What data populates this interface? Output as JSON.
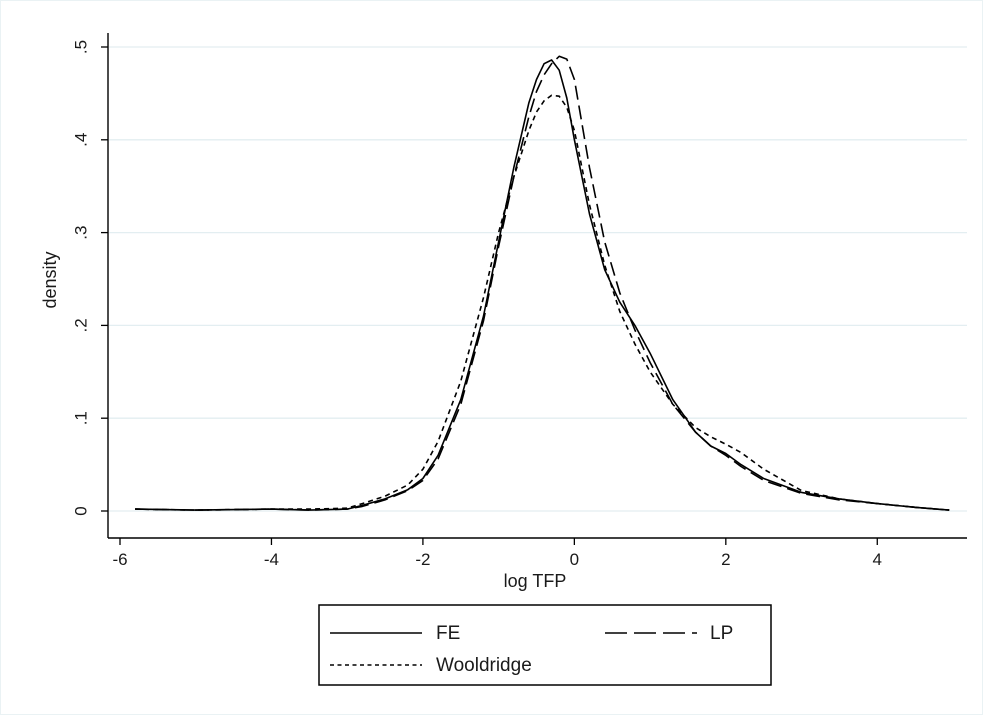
{
  "colors": {
    "background": "#ffffff",
    "plot_background": "#ffffff",
    "grid": "#e3eef1",
    "axis": "#000000",
    "series": "#000000",
    "frame": "#eaf2f4"
  },
  "chart_data": {
    "type": "line",
    "title": "",
    "xlabel": "log TFP",
    "ylabel": "density",
    "xlim": [
      -6.0,
      5.0
    ],
    "ylim": [
      -0.01,
      0.52
    ],
    "xticks": [
      -6,
      -4,
      -2,
      0,
      2,
      4
    ],
    "xtick_labels": [
      "-6",
      "-4",
      "-2",
      "0",
      "2",
      "4"
    ],
    "yticks": [
      0,
      0.1,
      0.2,
      0.3,
      0.4,
      0.5
    ],
    "ytick_labels": [
      "0",
      ".1",
      ".2",
      ".3",
      ".4",
      ".5"
    ],
    "grid": "horizontal",
    "legend_position": "bottom",
    "series": [
      {
        "name": "FE",
        "style": "solid",
        "x": [
          -5.8,
          -5.0,
          -4.0,
          -3.5,
          -3.0,
          -2.8,
          -2.5,
          -2.2,
          -2.0,
          -1.8,
          -1.5,
          -1.2,
          -1.0,
          -0.8,
          -0.6,
          -0.5,
          -0.4,
          -0.3,
          -0.2,
          -0.1,
          0.0,
          0.2,
          0.4,
          0.6,
          0.8,
          1.0,
          1.3,
          1.6,
          1.8,
          2.0,
          2.2,
          2.5,
          3.0,
          3.5,
          4.0,
          4.5,
          4.95
        ],
        "y": [
          0.002,
          0.001,
          0.002,
          0.001,
          0.002,
          0.006,
          0.013,
          0.023,
          0.035,
          0.06,
          0.12,
          0.21,
          0.29,
          0.37,
          0.44,
          0.465,
          0.482,
          0.486,
          0.475,
          0.445,
          0.4,
          0.32,
          0.26,
          0.225,
          0.2,
          0.17,
          0.12,
          0.085,
          0.07,
          0.062,
          0.05,
          0.035,
          0.02,
          0.013,
          0.008,
          0.004,
          0.001
        ]
      },
      {
        "name": "LP",
        "style": "dashed",
        "x": [
          -5.8,
          -5.0,
          -4.0,
          -3.5,
          -3.0,
          -2.8,
          -2.5,
          -2.2,
          -2.0,
          -1.8,
          -1.5,
          -1.2,
          -1.0,
          -0.8,
          -0.6,
          -0.5,
          -0.4,
          -0.3,
          -0.2,
          -0.1,
          0.0,
          0.2,
          0.4,
          0.6,
          0.8,
          1.0,
          1.3,
          1.6,
          1.8,
          2.0,
          2.2,
          2.5,
          3.0,
          3.5,
          4.0,
          4.5,
          4.95
        ],
        "y": [
          0.002,
          0.001,
          0.002,
          0.001,
          0.002,
          0.005,
          0.012,
          0.022,
          0.033,
          0.056,
          0.115,
          0.205,
          0.285,
          0.36,
          0.425,
          0.452,
          0.47,
          0.482,
          0.49,
          0.487,
          0.465,
          0.37,
          0.29,
          0.235,
          0.195,
          0.16,
          0.115,
          0.085,
          0.07,
          0.06,
          0.048,
          0.033,
          0.019,
          0.012,
          0.008,
          0.004,
          0.001
        ]
      },
      {
        "name": "Wooldridge",
        "style": "dotted",
        "x": [
          -5.8,
          -5.0,
          -4.0,
          -3.5,
          -3.0,
          -2.8,
          -2.5,
          -2.2,
          -2.0,
          -1.8,
          -1.5,
          -1.2,
          -1.0,
          -0.8,
          -0.6,
          -0.5,
          -0.4,
          -0.3,
          -0.2,
          -0.1,
          0.0,
          0.2,
          0.4,
          0.6,
          0.8,
          1.0,
          1.3,
          1.6,
          1.8,
          2.0,
          2.2,
          2.5,
          3.0,
          3.5,
          4.0,
          4.5,
          4.95
        ],
        "y": [
          0.002,
          0.001,
          0.002,
          0.002,
          0.003,
          0.008,
          0.016,
          0.028,
          0.045,
          0.075,
          0.14,
          0.23,
          0.3,
          0.36,
          0.41,
          0.43,
          0.442,
          0.448,
          0.447,
          0.435,
          0.41,
          0.33,
          0.265,
          0.215,
          0.18,
          0.15,
          0.115,
          0.09,
          0.08,
          0.072,
          0.063,
          0.045,
          0.022,
          0.013,
          0.008,
          0.004,
          0.001
        ]
      }
    ]
  }
}
